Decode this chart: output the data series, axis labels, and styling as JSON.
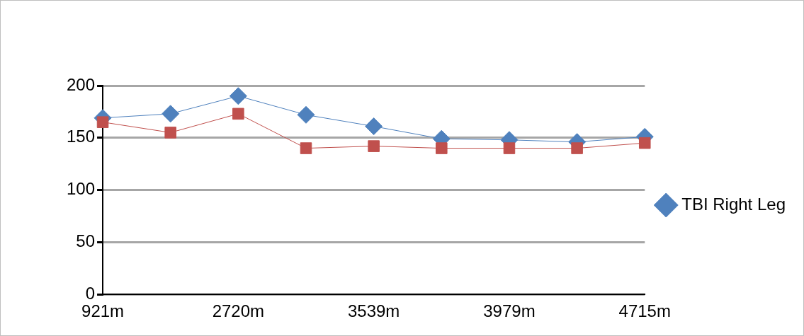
{
  "chart_data": {
    "type": "line",
    "categories": [
      "921m",
      null,
      "2720m",
      null,
      "3539m",
      null,
      "3979m",
      null,
      "4715m"
    ],
    "series": [
      {
        "name": "TBI Right Leg",
        "color": "#4f81bd",
        "marker": "diamond",
        "values": [
          169,
          173,
          190,
          172,
          161,
          149,
          148,
          146,
          151
        ]
      },
      {
        "color": "#c0504d",
        "marker": "square",
        "values": [
          165,
          155,
          173,
          140,
          142,
          140,
          140,
          140,
          145
        ]
      }
    ],
    "ylim": [
      0,
      200
    ],
    "yticks": [
      0,
      50,
      100,
      150,
      200
    ],
    "grid": "y",
    "legend": "right"
  }
}
